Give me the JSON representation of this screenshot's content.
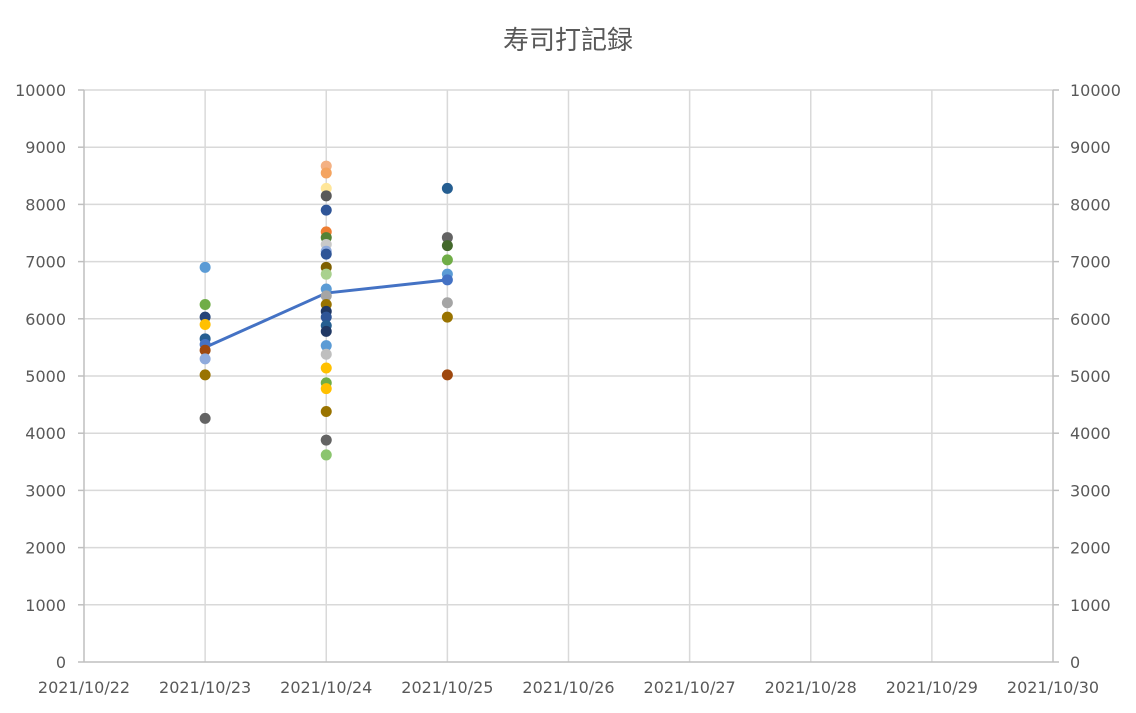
{
  "chart_data": {
    "type": "scatter",
    "title": "寿司打記録",
    "xlabel": "",
    "ylabel": "",
    "grid": true,
    "legend": "none",
    "x_ticks": [
      "2021/10/22",
      "2021/10/23",
      "2021/10/24",
      "2021/10/25",
      "2021/10/26",
      "2021/10/27",
      "2021/10/28",
      "2021/10/29",
      "2021/10/30"
    ],
    "y_ticks": [
      "0",
      "1000",
      "2000",
      "3000",
      "4000",
      "5000",
      "6000",
      "7000",
      "8000",
      "9000",
      "10000"
    ],
    "xlim": [
      "2021/10/22",
      "2021/10/30"
    ],
    "ylim": [
      0,
      10000
    ],
    "secondary_y_axis": true,
    "scatter_points": [
      {
        "x": "2021/10/23",
        "y": 6900,
        "color": "#5b9bd5"
      },
      {
        "x": "2021/10/23",
        "y": 6250,
        "color": "#70ad47"
      },
      {
        "x": "2021/10/23",
        "y": 6030,
        "color": "#264478"
      },
      {
        "x": "2021/10/23",
        "y": 5900,
        "color": "#ffc000"
      },
      {
        "x": "2021/10/23",
        "y": 5650,
        "color": "#255e91"
      },
      {
        "x": "2021/10/23",
        "y": 5550,
        "color": "#4472c4"
      },
      {
        "x": "2021/10/23",
        "y": 5450,
        "color": "#9e480e"
      },
      {
        "x": "2021/10/23",
        "y": 5300,
        "color": "#8faadc"
      },
      {
        "x": "2021/10/23",
        "y": 5020,
        "color": "#997300"
      },
      {
        "x": "2021/10/23",
        "y": 4260,
        "color": "#636363"
      },
      {
        "x": "2021/10/24",
        "y": 8670,
        "color": "#f4b183"
      },
      {
        "x": "2021/10/24",
        "y": 8550,
        "color": "#f4a460"
      },
      {
        "x": "2021/10/24",
        "y": 8280,
        "color": "#ffe699"
      },
      {
        "x": "2021/10/24",
        "y": 8150,
        "color": "#595959"
      },
      {
        "x": "2021/10/24",
        "y": 7900,
        "color": "#2f5597"
      },
      {
        "x": "2021/10/24",
        "y": 7520,
        "color": "#ed7d31"
      },
      {
        "x": "2021/10/24",
        "y": 7420,
        "color": "#548235"
      },
      {
        "x": "2021/10/24",
        "y": 7300,
        "color": "#c9c9c9"
      },
      {
        "x": "2021/10/24",
        "y": 7180,
        "color": "#8faadc"
      },
      {
        "x": "2021/10/24",
        "y": 7130,
        "color": "#2f5597"
      },
      {
        "x": "2021/10/24",
        "y": 6900,
        "color": "#7f6000"
      },
      {
        "x": "2021/10/24",
        "y": 6780,
        "color": "#a9d18e"
      },
      {
        "x": "2021/10/24",
        "y": 6520,
        "color": "#5b9bd5"
      },
      {
        "x": "2021/10/24",
        "y": 6400,
        "color": "#a5a5a5"
      },
      {
        "x": "2021/10/24",
        "y": 6250,
        "color": "#997300"
      },
      {
        "x": "2021/10/24",
        "y": 6130,
        "color": "#203864"
      },
      {
        "x": "2021/10/24",
        "y": 6030,
        "color": "#2f5597"
      },
      {
        "x": "2021/10/24",
        "y": 5880,
        "color": "#255e91"
      },
      {
        "x": "2021/10/24",
        "y": 5780,
        "color": "#203864"
      },
      {
        "x": "2021/10/24",
        "y": 5530,
        "color": "#5b9bd5"
      },
      {
        "x": "2021/10/24",
        "y": 5380,
        "color": "#bfbfbf"
      },
      {
        "x": "2021/10/24",
        "y": 5140,
        "color": "#ffc000"
      },
      {
        "x": "2021/10/24",
        "y": 4880,
        "color": "#70ad47"
      },
      {
        "x": "2021/10/24",
        "y": 4780,
        "color": "#ffc000"
      },
      {
        "x": "2021/10/24",
        "y": 4380,
        "color": "#997300"
      },
      {
        "x": "2021/10/24",
        "y": 3880,
        "color": "#636363"
      },
      {
        "x": "2021/10/24",
        "y": 3620,
        "color": "#8bc56e"
      },
      {
        "x": "2021/10/25",
        "y": 8280,
        "color": "#255e91"
      },
      {
        "x": "2021/10/25",
        "y": 7420,
        "color": "#636363"
      },
      {
        "x": "2021/10/25",
        "y": 7280,
        "color": "#43682b"
      },
      {
        "x": "2021/10/25",
        "y": 7030,
        "color": "#70ad47"
      },
      {
        "x": "2021/10/25",
        "y": 6780,
        "color": "#5b9bd5"
      },
      {
        "x": "2021/10/25",
        "y": 6680,
        "color": "#4472c4"
      },
      {
        "x": "2021/10/25",
        "y": 6280,
        "color": "#a5a5a5"
      },
      {
        "x": "2021/10/25",
        "y": 6030,
        "color": "#997300"
      },
      {
        "x": "2021/10/25",
        "y": 5020,
        "color": "#9e480e"
      }
    ],
    "series": [
      {
        "type": "line",
        "color": "#4472c4",
        "points": [
          {
            "x": "2021/10/23",
            "y": 5500
          },
          {
            "x": "2021/10/24",
            "y": 6450
          },
          {
            "x": "2021/10/25",
            "y": 6680
          }
        ]
      }
    ]
  }
}
